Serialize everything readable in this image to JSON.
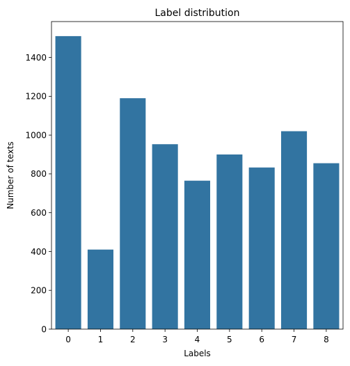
{
  "chart_data": {
    "type": "bar",
    "title": "Label distribution",
    "xlabel": "Labels",
    "ylabel": "Number of texts",
    "categories": [
      "0",
      "1",
      "2",
      "3",
      "4",
      "5",
      "6",
      "7",
      "8"
    ],
    "values": [
      1510,
      410,
      1190,
      953,
      765,
      900,
      833,
      1020,
      855
    ],
    "ylim": [
      0,
      1585
    ],
    "yticks": [
      0,
      200,
      400,
      600,
      800,
      1000,
      1200,
      1400
    ],
    "bar_color": "#3274a1",
    "grid": false,
    "legend": "none"
  }
}
